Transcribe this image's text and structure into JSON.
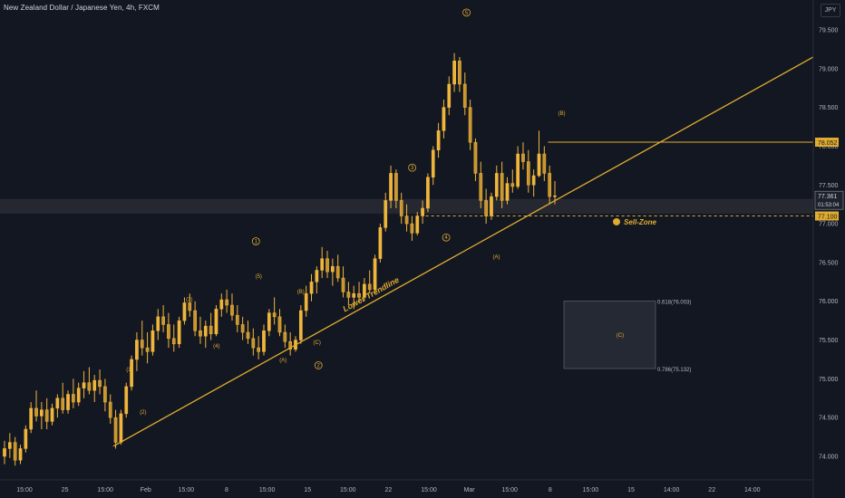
{
  "header": {
    "title": "New Zealand Dollar / Japanese Yen, 4h, FXCM",
    "currency": "JPY"
  },
  "colors": {
    "background": "#131722",
    "candle": "#f0b63c",
    "trendline": "#e0ac30",
    "axis_text": "#b2b5be",
    "zone_fill": "#2a2e39",
    "sell_zone_band": "#262831"
  },
  "chart_data": {
    "type": "candlestick",
    "y_axis": {
      "position": "right",
      "ylim": [
        73.8,
        79.8
      ],
      "ticks": [
        "79.500",
        "79.000",
        "78.500",
        "78.000",
        "77.500",
        "77.000",
        "76.500",
        "76.000",
        "75.500",
        "75.000",
        "74.500",
        "74.000"
      ]
    },
    "x_axis": {
      "ticks": [
        "15:00",
        "25",
        "15:00",
        "Feb",
        "15:00",
        "8",
        "15:00",
        "15",
        "15:00",
        "22",
        "15:00",
        "Mar",
        "15:00",
        "8",
        "15:00",
        "15",
        "14:00",
        "22",
        "14:00"
      ]
    },
    "price_labels": [
      {
        "value": "78.052",
        "style": "highlight"
      },
      {
        "value": "77.361",
        "style": "current",
        "countdown": "01:53:04"
      },
      {
        "value": "77.100",
        "style": "highlight"
      }
    ],
    "horizontal_lines": [
      {
        "price": 78.052,
        "style": "solid",
        "from_x_index": 40
      },
      {
        "price": 77.1,
        "style": "dashed",
        "from_x_index": 31
      }
    ],
    "trendline": {
      "label": "Lower Trendline",
      "from": {
        "x_index": 8,
        "price": 74.13
      },
      "to": {
        "x_index": 62,
        "price": 79.15
      }
    },
    "fib_zone": {
      "label": "(C)",
      "top": {
        "price": 76.003,
        "label": "0.618(76.003)"
      },
      "bottom": {
        "price": 75.132,
        "label": "0.786(75.132)"
      }
    },
    "sell_zone": {
      "label": "Sell-Zone",
      "price_top": 77.32,
      "price_bottom": 77.13
    },
    "wave_labels": [
      {
        "text": "1",
        "circled": true,
        "price": 76.75,
        "x_index": 18.5
      },
      {
        "text": "(5)",
        "price": 76.3,
        "x_index": 18.7
      },
      {
        "text": "(3)",
        "price": 76.0,
        "x_index": 13.6
      },
      {
        "text": "(4)",
        "price": 75.4,
        "x_index": 15.6
      },
      {
        "text": "(1)",
        "price": 75.1,
        "x_index": 9.2
      },
      {
        "text": "(2)",
        "price": 74.55,
        "x_index": 10.2
      },
      {
        "text": "(B)",
        "price": 76.1,
        "x_index": 21.8
      },
      {
        "text": "(A)",
        "price": 75.22,
        "x_index": 20.5
      },
      {
        "text": "(C)",
        "price": 75.45,
        "x_index": 23.0
      },
      {
        "text": "2",
        "circled": true,
        "price": 75.15,
        "x_index": 23.1
      },
      {
        "text": "3",
        "circled": true,
        "price": 77.7,
        "x_index": 30.0
      },
      {
        "text": "4",
        "circled": true,
        "price": 76.8,
        "x_index": 32.5
      },
      {
        "text": "5",
        "circled": true,
        "price": 79.7,
        "x_index": 34.0
      },
      {
        "text": "(B)",
        "price": 78.4,
        "x_index": 41.0
      },
      {
        "text": "(A)",
        "price": 76.55,
        "x_index": 36.2
      }
    ],
    "ohlc": [
      [
        74.0,
        74.2,
        73.9,
        74.1
      ],
      [
        74.1,
        74.3,
        73.98,
        74.18
      ],
      [
        74.18,
        74.25,
        73.88,
        73.95
      ],
      [
        73.95,
        74.15,
        73.9,
        74.1
      ],
      [
        74.1,
        74.4,
        74.05,
        74.35
      ],
      [
        74.35,
        74.7,
        74.3,
        74.62
      ],
      [
        74.62,
        74.85,
        74.45,
        74.52
      ],
      [
        74.52,
        74.7,
        74.35,
        74.6
      ],
      [
        74.6,
        74.75,
        74.35,
        74.45
      ],
      [
        74.45,
        74.68,
        74.4,
        74.62
      ],
      [
        74.62,
        74.8,
        74.5,
        74.75
      ],
      [
        74.75,
        74.95,
        74.55,
        74.6
      ],
      [
        74.6,
        74.85,
        74.55,
        74.8
      ],
      [
        74.8,
        75.0,
        74.62,
        74.7
      ],
      [
        74.7,
        74.95,
        74.65,
        74.88
      ],
      [
        74.88,
        75.1,
        74.75,
        74.95
      ],
      [
        74.95,
        75.15,
        74.8,
        74.85
      ],
      [
        74.85,
        75.05,
        74.7,
        74.98
      ],
      [
        74.98,
        75.12,
        74.8,
        74.9
      ],
      [
        74.9,
        75.0,
        74.58,
        74.7
      ],
      [
        74.7,
        74.8,
        74.42,
        74.5
      ],
      [
        74.5,
        74.6,
        74.1,
        74.18
      ],
      [
        74.18,
        74.6,
        74.15,
        74.55
      ],
      [
        74.55,
        74.95,
        74.5,
        74.9
      ],
      [
        74.9,
        75.3,
        74.85,
        75.25
      ],
      [
        75.25,
        75.6,
        75.1,
        75.5
      ],
      [
        75.5,
        75.75,
        75.3,
        75.4
      ],
      [
        75.4,
        75.6,
        75.2,
        75.35
      ],
      [
        75.35,
        75.7,
        75.3,
        75.62
      ],
      [
        75.62,
        75.9,
        75.5,
        75.8
      ],
      [
        75.8,
        75.95,
        75.6,
        75.7
      ],
      [
        75.7,
        75.85,
        75.4,
        75.52
      ],
      [
        75.52,
        75.7,
        75.35,
        75.45
      ],
      [
        75.45,
        75.8,
        75.4,
        75.75
      ],
      [
        75.75,
        76.05,
        75.7,
        75.98
      ],
      [
        75.98,
        76.1,
        75.8,
        75.88
      ],
      [
        75.88,
        76.0,
        75.55,
        75.62
      ],
      [
        75.62,
        75.8,
        75.45,
        75.55
      ],
      [
        75.55,
        75.75,
        75.4,
        75.68
      ],
      [
        75.68,
        75.85,
        75.5,
        75.58
      ],
      [
        75.58,
        75.95,
        75.55,
        75.9
      ],
      [
        75.9,
        76.1,
        75.8,
        76.02
      ],
      [
        76.02,
        76.15,
        75.85,
        75.95
      ],
      [
        75.95,
        76.1,
        75.75,
        75.82
      ],
      [
        75.82,
        75.95,
        75.6,
        75.7
      ],
      [
        75.7,
        75.8,
        75.5,
        75.6
      ],
      [
        75.6,
        75.75,
        75.45,
        75.52
      ],
      [
        75.52,
        75.65,
        75.3,
        75.4
      ],
      [
        75.4,
        75.55,
        75.25,
        75.35
      ],
      [
        75.35,
        75.7,
        75.3,
        75.62
      ],
      [
        75.62,
        75.9,
        75.55,
        75.85
      ],
      [
        75.85,
        76.05,
        75.7,
        75.8
      ],
      [
        75.8,
        75.9,
        75.55,
        75.6
      ],
      [
        75.6,
        75.7,
        75.4,
        75.48
      ],
      [
        75.48,
        75.6,
        75.3,
        75.38
      ],
      [
        75.38,
        75.55,
        75.35,
        75.5
      ],
      [
        75.5,
        75.95,
        75.45,
        75.88
      ],
      [
        75.88,
        76.2,
        75.8,
        76.1
      ],
      [
        76.1,
        76.35,
        76.0,
        76.25
      ],
      [
        76.25,
        76.45,
        76.1,
        76.4
      ],
      [
        76.4,
        76.7,
        76.3,
        76.55
      ],
      [
        76.55,
        76.65,
        76.3,
        76.38
      ],
      [
        76.38,
        76.55,
        76.2,
        76.45
      ],
      [
        76.45,
        76.6,
        76.25,
        76.3
      ],
      [
        76.3,
        76.45,
        76.05,
        76.12
      ],
      [
        76.12,
        76.25,
        75.95,
        76.05
      ],
      [
        76.05,
        76.2,
        75.9,
        76.1
      ],
      [
        76.1,
        76.25,
        75.98,
        76.05
      ],
      [
        76.05,
        76.3,
        76.0,
        76.22
      ],
      [
        76.22,
        76.4,
        76.1,
        76.15
      ],
      [
        76.15,
        76.6,
        76.1,
        76.55
      ],
      [
        76.55,
        77.0,
        76.5,
        76.95
      ],
      [
        76.95,
        77.4,
        76.9,
        77.3
      ],
      [
        77.3,
        77.75,
        77.2,
        77.65
      ],
      [
        77.65,
        77.7,
        77.2,
        77.3
      ],
      [
        77.3,
        77.4,
        77.0,
        77.1
      ],
      [
        77.1,
        77.25,
        76.9,
        77.0
      ],
      [
        77.0,
        77.1,
        76.78,
        76.88
      ],
      [
        76.88,
        77.15,
        76.85,
        77.1
      ],
      [
        77.1,
        77.3,
        77.0,
        77.2
      ],
      [
        77.2,
        77.65,
        77.15,
        77.6
      ],
      [
        77.6,
        78.0,
        77.5,
        77.95
      ],
      [
        77.95,
        78.3,
        77.85,
        78.2
      ],
      [
        78.2,
        78.6,
        78.1,
        78.5
      ],
      [
        78.5,
        78.9,
        78.4,
        78.8
      ],
      [
        78.8,
        79.2,
        78.7,
        79.1
      ],
      [
        79.1,
        79.15,
        78.7,
        78.8
      ],
      [
        78.8,
        78.95,
        78.4,
        78.5
      ],
      [
        78.5,
        78.6,
        77.95,
        78.05
      ],
      [
        78.05,
        78.1,
        77.55,
        77.65
      ],
      [
        77.65,
        77.8,
        77.2,
        77.3
      ],
      [
        77.3,
        77.45,
        77.0,
        77.1
      ],
      [
        77.1,
        77.4,
        77.05,
        77.35
      ],
      [
        77.35,
        77.75,
        77.3,
        77.65
      ],
      [
        77.65,
        77.8,
        77.2,
        77.3
      ],
      [
        77.3,
        77.6,
        77.25,
        77.52
      ],
      [
        77.52,
        77.7,
        77.4,
        77.48
      ],
      [
        77.48,
        78.0,
        77.45,
        77.9
      ],
      [
        77.9,
        78.05,
        77.7,
        77.8
      ],
      [
        77.8,
        77.95,
        77.4,
        77.5
      ],
      [
        77.5,
        77.7,
        77.35,
        77.62
      ],
      [
        77.62,
        78.2,
        77.6,
        77.9
      ],
      [
        77.9,
        78.0,
        77.55,
        77.65
      ],
      [
        77.65,
        77.75,
        77.25,
        77.35
      ],
      [
        77.35,
        77.55,
        77.25,
        77.36
      ]
    ]
  }
}
